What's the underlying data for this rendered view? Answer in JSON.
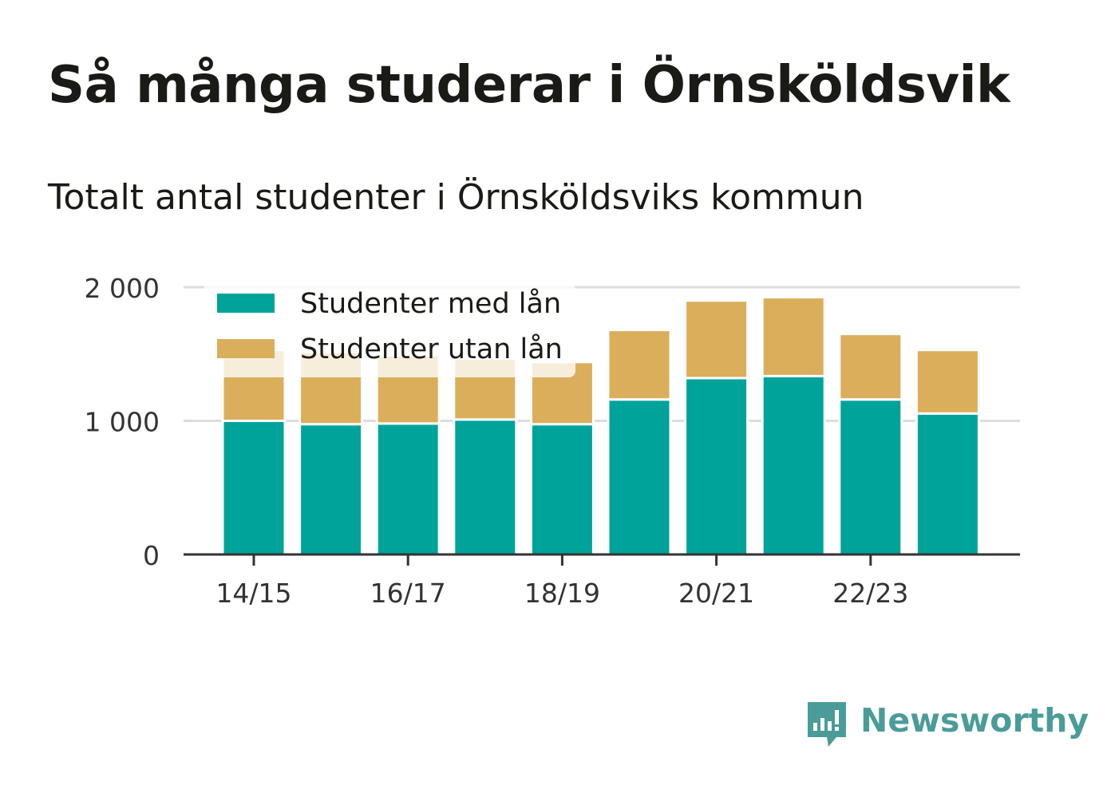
{
  "title": "Så många studerar i Örnsköldsvik",
  "subtitle": "Totalt antal studenter i Örnsköldsviks kommun",
  "brand": "Newsworthy",
  "colors": {
    "with_loan": "#00a39a",
    "without_loan": "#dbae5c",
    "grid": "#dddddd",
    "axis": "#333333",
    "brand": "#4a9c99"
  },
  "chart_data": {
    "type": "bar",
    "stacked": true,
    "categories": [
      "14/15",
      "15/16",
      "16/17",
      "17/18",
      "18/19",
      "19/20",
      "20/21",
      "21/22",
      "22/23",
      "23/24"
    ],
    "x_tick_labels": [
      "14/15",
      "",
      "16/17",
      "",
      "18/19",
      "",
      "20/21",
      "",
      "22/23",
      ""
    ],
    "series": [
      {
        "name": "Studenter med lån",
        "values": [
          1000,
          975,
          980,
          1010,
          975,
          1160,
          1320,
          1335,
          1160,
          1055
        ]
      },
      {
        "name": "Studenter utan lån",
        "values": [
          530,
          540,
          510,
          455,
          465,
          520,
          580,
          590,
          490,
          475
        ]
      }
    ],
    "yticks": [
      0,
      1000,
      2000
    ],
    "ytick_labels": [
      "0",
      "1 000",
      "2 000"
    ],
    "ylim": [
      0,
      2000
    ],
    "legend_position": "top-left",
    "grid": true
  }
}
